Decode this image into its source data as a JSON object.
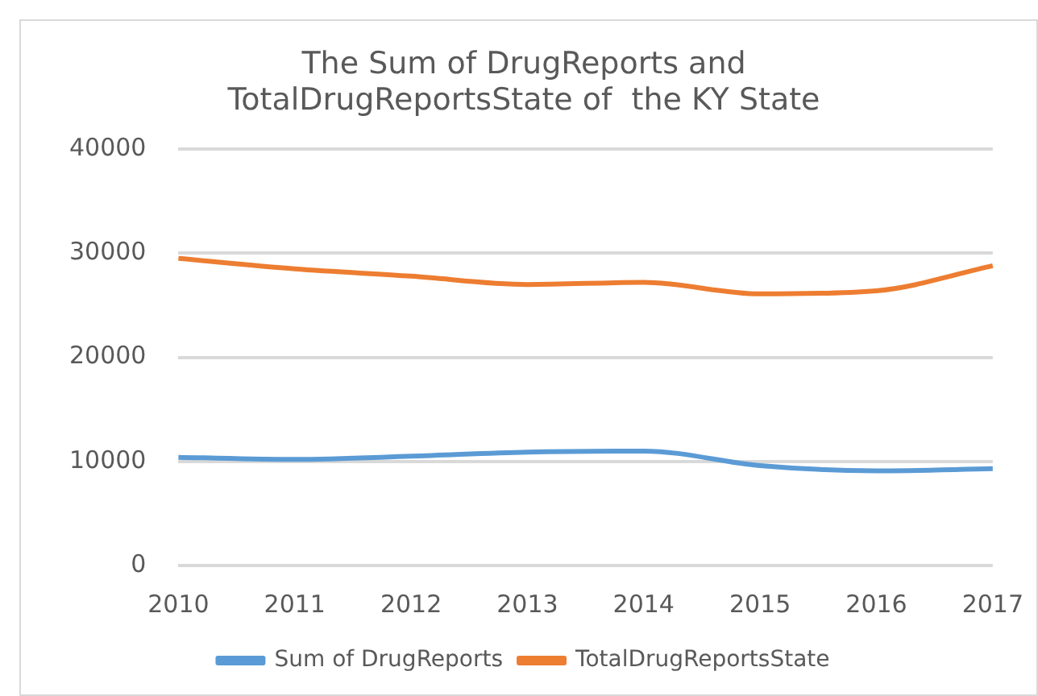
{
  "chart_data": {
    "type": "line",
    "title": "The Sum of DrugReports and\nTotalDrugReportsState of  the KY State",
    "categories": [
      "2010",
      "2011",
      "2012",
      "2013",
      "2014",
      "2015",
      "2016",
      "2017"
    ],
    "series": [
      {
        "name": "Sum of DrugReports",
        "color": "#5b9bd5",
        "values": [
          10400,
          10200,
          10500,
          10900,
          11000,
          9600,
          9100,
          9300
        ]
      },
      {
        "name": "TotalDrugReportsState",
        "color": "#ed7d31",
        "values": [
          29500,
          28500,
          27800,
          27000,
          27200,
          26100,
          26400,
          28800
        ]
      }
    ],
    "ylim": [
      0,
      40000
    ],
    "yticks": [
      0,
      10000,
      20000,
      30000,
      40000
    ],
    "grid": "y",
    "legend": "bottom",
    "marker": "none",
    "line_style": "solid"
  }
}
